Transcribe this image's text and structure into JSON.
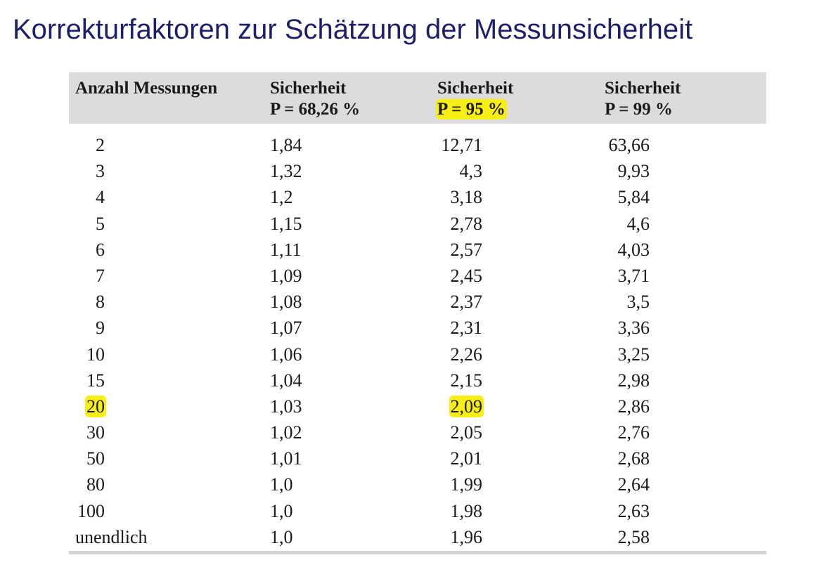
{
  "title": "Korrekturfaktoren zur Schätzung der Messunsicherheit",
  "table": {
    "headers": [
      {
        "line1": "Anzahl Messungen",
        "line2": ""
      },
      {
        "line1": "Sicherheit",
        "line2": "P = 68,26 %"
      },
      {
        "line1": "Sicherheit",
        "line2": "P = 95 %"
      },
      {
        "line1": "Sicherheit",
        "line2": "P = 99 %"
      }
    ],
    "highlight_color": "#f7ee14",
    "rows": [
      [
        "2",
        "1,84",
        "12,71",
        "63,66"
      ],
      [
        "3",
        "1,32",
        "4,3",
        "9,93"
      ],
      [
        "4",
        "1,2",
        "3,18",
        "5,84"
      ],
      [
        "5",
        "1,15",
        "2,78",
        "4,6"
      ],
      [
        "6",
        "1,11",
        "2,57",
        "4,03"
      ],
      [
        "7",
        "1,09",
        "2,45",
        "3,71"
      ],
      [
        "8",
        "1,08",
        "2,37",
        "3,5"
      ],
      [
        "9",
        "1,07",
        "2,31",
        "3,36"
      ],
      [
        "10",
        "1,06",
        "2,26",
        "3,25"
      ],
      [
        "15",
        "1,04",
        "2,15",
        "2,98"
      ],
      [
        "20",
        "1,03",
        "2,09",
        "2,86"
      ],
      [
        "30",
        "1,02",
        "2,05",
        "2,76"
      ],
      [
        "50",
        "1,01",
        "2,01",
        "2,68"
      ],
      [
        "80",
        "1,0",
        "1,99",
        "2,64"
      ],
      [
        "100",
        "1,0",
        "1,98",
        "2,63"
      ],
      [
        "unendlich",
        "1,0",
        "1,96",
        "2,58"
      ]
    ]
  }
}
